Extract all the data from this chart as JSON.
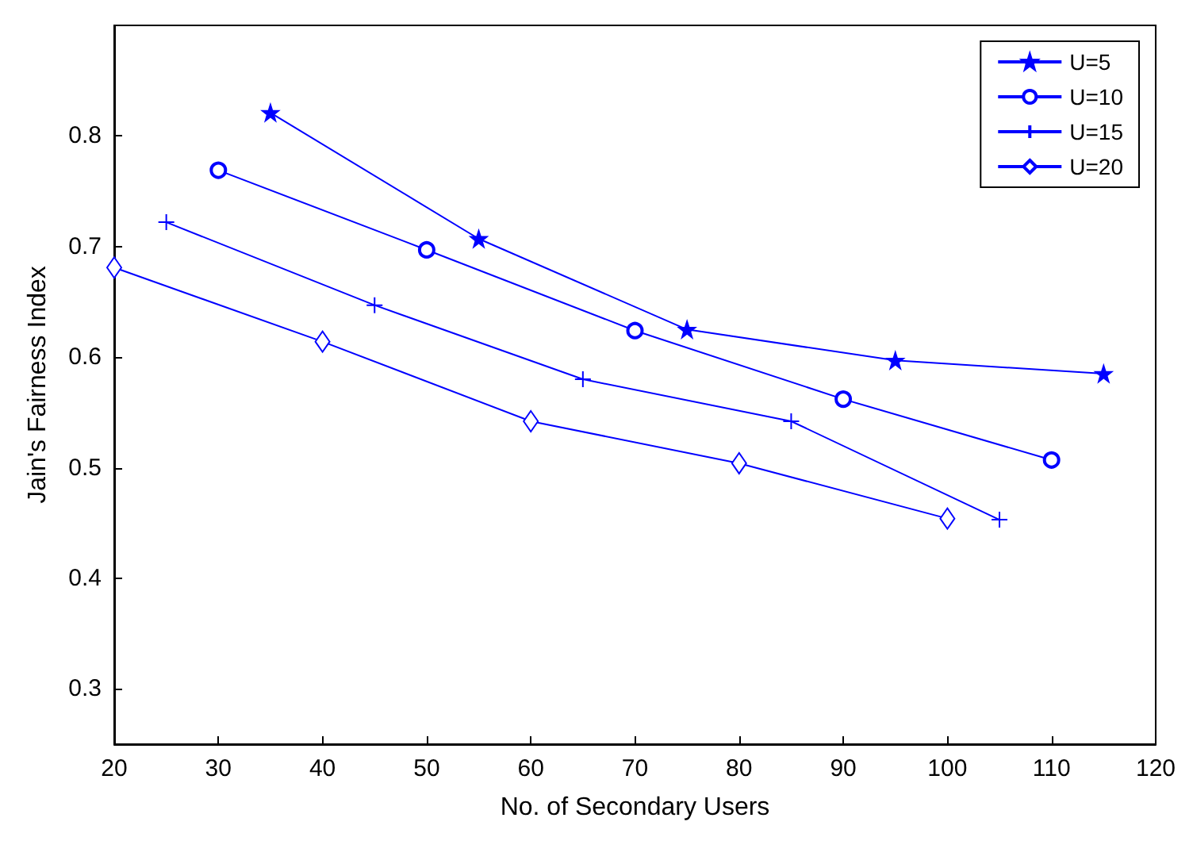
{
  "chart_data": {
    "type": "line",
    "xlabel": "No. of Secondary Users",
    "ylabel": "Jain's Fairness Index",
    "xlim": [
      20,
      120
    ],
    "xticks": [
      20,
      30,
      40,
      50,
      60,
      70,
      80,
      90,
      100,
      110,
      120
    ],
    "ylim": [
      0.25,
      0.9
    ],
    "yticks": [
      0.3,
      0.4,
      0.5,
      0.6,
      0.7,
      0.8
    ],
    "grid": false,
    "legend": "top right",
    "line_style": "solid",
    "series": [
      {
        "name": "U=5",
        "color": "#0000ff",
        "marker": "star",
        "x": [
          35,
          55,
          75,
          95,
          115
        ],
        "values": [
          0.821,
          0.707,
          0.625,
          0.597,
          0.585
        ]
      },
      {
        "name": "U=10",
        "color": "#0000ff",
        "marker": "circle",
        "x": [
          30,
          50,
          70,
          90,
          110
        ],
        "values": [
          0.769,
          0.697,
          0.624,
          0.562,
          0.507
        ]
      },
      {
        "name": "U=15",
        "color": "#0000ff",
        "marker": "cross",
        "x": [
          25,
          45,
          65,
          85,
          105
        ],
        "values": [
          0.722,
          0.647,
          0.58,
          0.542,
          0.453
        ]
      },
      {
        "name": "U=20",
        "color": "#0000ff",
        "marker": "diamond",
        "x": [
          20,
          40,
          60,
          80,
          100
        ],
        "values": [
          0.681,
          0.614,
          0.542,
          0.504,
          0.454
        ]
      }
    ]
  }
}
